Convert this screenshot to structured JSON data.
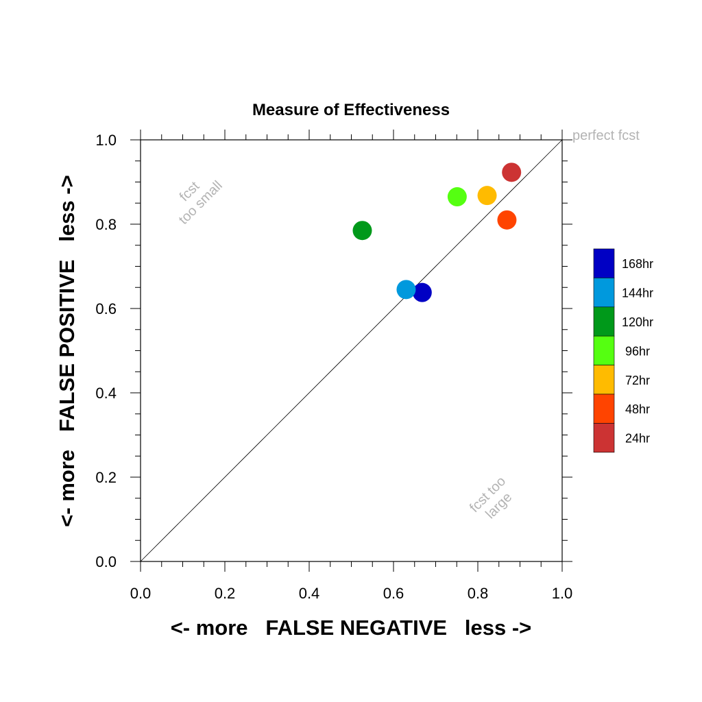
{
  "chart_data": {
    "type": "scatter",
    "title": "Measure of Effectiveness",
    "xlabel": "<- more   FALSE NEGATIVE   less ->",
    "ylabel": "<- more   FALSE POSITIVE   less ->",
    "xlim": [
      0.0,
      1.0
    ],
    "ylim": [
      0.0,
      1.0
    ],
    "x_ticks": [
      "0.0",
      "0.2",
      "0.4",
      "0.6",
      "0.8",
      "1.0"
    ],
    "y_ticks": [
      "0.0",
      "0.2",
      "0.4",
      "0.6",
      "0.8",
      "1.0"
    ],
    "grid": false,
    "diagonal_line": true,
    "annotations": {
      "perfect": "perfect fcst",
      "too_small_line1": "fcst",
      "too_small_line2": "too small",
      "too_large_line1": "fcst too",
      "too_large_line2": "large"
    },
    "legend_position": "right",
    "series": [
      {
        "name": "168hr",
        "color": "#0000c4",
        "x": 0.668,
        "y": 0.638
      },
      {
        "name": "144hr",
        "color": "#0099dd",
        "x": 0.63,
        "y": 0.645
      },
      {
        "name": "120hr",
        "color": "#00991a",
        "x": 0.526,
        "y": 0.785
      },
      {
        "name": "96hr",
        "color": "#55ff11",
        "x": 0.751,
        "y": 0.865
      },
      {
        "name": "72hr",
        "color": "#ffbb00",
        "x": 0.822,
        "y": 0.868
      },
      {
        "name": "48hr",
        "color": "#ff4400",
        "x": 0.869,
        "y": 0.81
      },
      {
        "name": "24hr",
        "color": "#cc3333",
        "x": 0.88,
        "y": 0.923
      }
    ]
  }
}
